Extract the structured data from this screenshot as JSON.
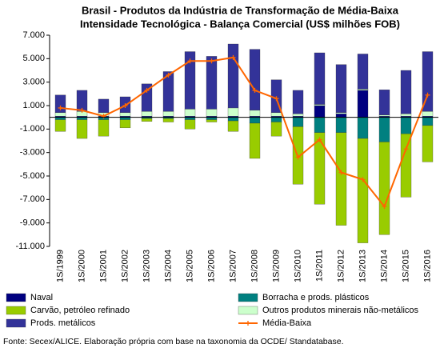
{
  "chart_data": {
    "type": "bar",
    "stacked": true,
    "title": "Brasil - Produtos da Indústria de Transformação de Média-Baixa",
    "subtitle": "Intensidade Tecnológica - Balança Comercial (US$ milhões FOB)",
    "source": "Fonte: Secex/ALICE. Elaboração própria com base na taxonomia da OCDE/ Standatabase.",
    "categories": [
      "1S/1999",
      "1S/2000",
      "1S/2001",
      "1S/2002",
      "1S/2003",
      "1S/2004",
      "1S/2005",
      "1S/2006",
      "1S/2007",
      "1S/2008",
      "1S/2009",
      "1S/2010",
      "1S/2011",
      "1S/2012",
      "1S/2013",
      "1S/2014",
      "1S/2015",
      "1S/2016"
    ],
    "ylim": [
      -11000,
      7000
    ],
    "yticks": [
      {
        "value": -11000,
        "label": "-11.000"
      },
      {
        "value": -9000,
        "label": "-9.000"
      },
      {
        "value": -7000,
        "label": "-7.000"
      },
      {
        "value": -5000,
        "label": "-5.000"
      },
      {
        "value": -3000,
        "label": "-3.000"
      },
      {
        "value": -1000,
        "label": "-1.000"
      },
      {
        "value": 1000,
        "label": "1.000"
      },
      {
        "value": 3000,
        "label": "3.000"
      },
      {
        "value": 5000,
        "label": "5.000"
      },
      {
        "value": 7000,
        "label": "7.000"
      }
    ],
    "grid": false,
    "series": [
      {
        "name": "Naval",
        "color": "#000080",
        "values": [
          100,
          100,
          100,
          100,
          100,
          100,
          100,
          100,
          100,
          100,
          100,
          100,
          1000,
          300,
          2300,
          100,
          100,
          100
        ]
      },
      {
        "name": "Borracha e prods. plásticos",
        "color": "#008080",
        "values": [
          -200,
          -200,
          -200,
          -200,
          -100,
          -100,
          -200,
          -200,
          -300,
          -500,
          -400,
          -800,
          -1300,
          -1300,
          -1800,
          -2100,
          -1400,
          -700
        ]
      },
      {
        "name": "Carvão, petróleo refinado",
        "color": "#99cc00",
        "values": [
          -1000,
          -1600,
          -1400,
          -700,
          -250,
          -300,
          -800,
          -200,
          -900,
          -3000,
          -1200,
          -4900,
          -6100,
          -7900,
          -8900,
          -7900,
          -5400,
          -3100
        ]
      },
      {
        "name": "Outros produtos minerais não-metálicos",
        "color": "#ccffcc",
        "values": [
          300,
          400,
          300,
          300,
          400,
          400,
          600,
          600,
          700,
          500,
          300,
          200,
          100,
          100,
          100,
          100,
          200,
          400
        ]
      },
      {
        "name": "Prods. metálicos",
        "color": "#333399",
        "values": [
          1500,
          1800,
          1150,
          1350,
          2350,
          3400,
          4900,
          4500,
          5450,
          5200,
          2800,
          2000,
          4400,
          4100,
          3000,
          2150,
          3700,
          5100
        ]
      },
      {
        "name": "Média-Baixa",
        "color": "#ff6600",
        "type": "line",
        "values": [
          800,
          600,
          100,
          1000,
          2300,
          3600,
          4800,
          4800,
          5100,
          2300,
          1600,
          -3400,
          -1900,
          -4700,
          -5300,
          -7600,
          -2700,
          1900
        ]
      }
    ]
  }
}
